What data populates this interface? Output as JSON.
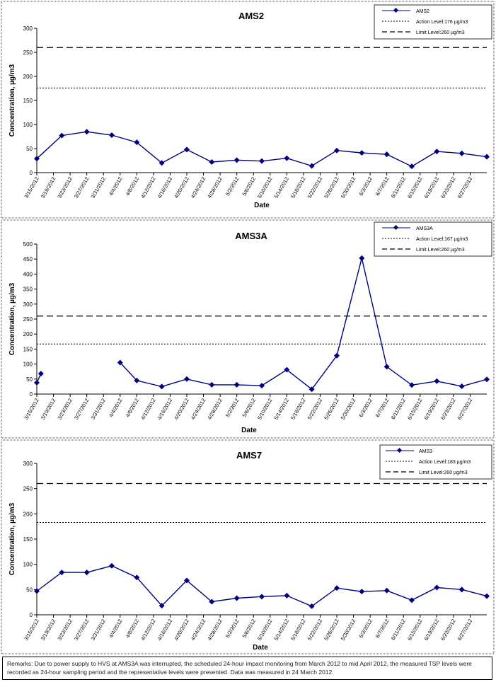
{
  "chart_data": [
    {
      "type": "line",
      "title": "AMS2",
      "xlabel": "Date",
      "ylabel": "Concentration, µg/m3",
      "ylim": [
        0,
        300
      ],
      "yticks": [
        0,
        50,
        100,
        150,
        200,
        250,
        300
      ],
      "x": [
        "3/15/2012",
        "3/19/2012",
        "3/23/2012",
        "3/27/2012",
        "3/31/2012",
        "4/4/2012",
        "4/8/2012",
        "4/12/2012",
        "4/16/2012",
        "4/20/2012",
        "4/24/2012",
        "4/28/2012",
        "5/2/2012",
        "5/6/2012",
        "5/10/2012",
        "5/14/2012",
        "5/18/2012",
        "5/22/2012",
        "5/26/2012",
        "5/30/2012",
        "6/3/2012",
        "6/7/2012",
        "6/11/2012",
        "6/15/2012",
        "6/19/2012",
        "6/23/2012",
        "6/27/2012"
      ],
      "series": [
        {
          "name": "AMS2",
          "points": [
            [
              "3/15/2012",
              29
            ],
            [
              "3/21/2012",
              77
            ],
            [
              "3/27/2012",
              85
            ],
            [
              "4/2/2012",
              78
            ],
            [
              "4/8/2012",
              63
            ],
            [
              "4/14/2012",
              20
            ],
            [
              "4/20/2012",
              48
            ],
            [
              "4/26/2012",
              22
            ],
            [
              "5/2/2012",
              26
            ],
            [
              "5/8/2012",
              24
            ],
            [
              "5/14/2012",
              30
            ],
            [
              "5/20/2012",
              14
            ],
            [
              "5/26/2012",
              46
            ],
            [
              "6/1/2012",
              41
            ],
            [
              "6/7/2012",
              38
            ],
            [
              "6/13/2012",
              13
            ],
            [
              "6/19/2012",
              44
            ],
            [
              "6/25/2012",
              40
            ],
            [
              "7/1/2012",
              33
            ]
          ]
        }
      ],
      "ref_lines": [
        {
          "name": "Action Level:176 µg/m3",
          "value": 176,
          "style": "dotted"
        },
        {
          "name": "Limit Level:260 µg/m3",
          "value": 260,
          "style": "dashed"
        }
      ],
      "legend_position": "top-right"
    },
    {
      "type": "line",
      "title": "AMS3A",
      "xlabel": "Date",
      "ylabel": "Concentration, µg/m3",
      "ylim": [
        0,
        500
      ],
      "yticks": [
        0,
        50,
        100,
        150,
        200,
        250,
        300,
        350,
        400,
        450,
        500
      ],
      "x": [
        "3/15/2012",
        "3/19/2012",
        "3/23/2012",
        "3/27/2012",
        "3/31/2012",
        "4/4/2012",
        "4/8/2012",
        "4/12/2012",
        "4/16/2012",
        "4/20/2012",
        "4/24/2012",
        "4/28/2012",
        "5/2/2012",
        "5/6/2012",
        "5/10/2012",
        "5/14/2012",
        "5/18/2012",
        "5/22/2012",
        "5/26/2012",
        "5/30/2012",
        "6/3/2012",
        "6/7/2012",
        "6/11/2012",
        "6/15/2012",
        "6/19/2012",
        "6/23/2012",
        "6/27/2012"
      ],
      "series": [
        {
          "name": "AMS3A",
          "segments": [
            [
              [
                "3/15/2012",
                38
              ],
              [
                "3/16/2012",
                68
              ]
            ],
            [
              [
                "4/4/2012",
                105
              ],
              [
                "4/8/2012",
                45
              ],
              [
                "4/14/2012",
                25
              ],
              [
                "4/20/2012",
                50
              ],
              [
                "4/26/2012",
                31
              ],
              [
                "5/2/2012",
                31
              ],
              [
                "5/8/2012",
                28
              ],
              [
                "5/14/2012",
                81
              ],
              [
                "5/20/2012",
                16
              ],
              [
                "5/26/2012",
                128
              ],
              [
                "6/1/2012",
                453
              ],
              [
                "6/7/2012",
                91
              ],
              [
                "6/13/2012",
                30
              ],
              [
                "6/19/2012",
                43
              ],
              [
                "6/25/2012",
                26
              ],
              [
                "7/1/2012",
                49
              ]
            ]
          ]
        }
      ],
      "ref_lines": [
        {
          "name": "Action Level:167 µg/m3",
          "value": 167,
          "style": "dotted"
        },
        {
          "name": "Limit Level:260 µg/m3",
          "value": 260,
          "style": "dashed"
        }
      ],
      "legend_position": "top-right"
    },
    {
      "type": "line",
      "title": "AMS7",
      "xlabel": "Date",
      "ylabel": "Concentration, µg/m3",
      "ylim": [
        0,
        300
      ],
      "yticks": [
        0,
        50,
        100,
        150,
        200,
        250,
        300
      ],
      "x": [
        "3/15/2012",
        "3/19/2012",
        "3/23/2012",
        "3/27/2012",
        "3/31/2012",
        "4/4/2012",
        "4/8/2012",
        "4/12/2012",
        "4/16/2012",
        "4/20/2012",
        "4/24/2012",
        "4/28/2012",
        "5/2/2012",
        "5/6/2012",
        "5/10/2012",
        "5/14/2012",
        "5/18/2012",
        "5/22/2012",
        "5/26/2012",
        "5/30/2012",
        "6/3/2012",
        "6/7/2012",
        "6/11/2012",
        "6/15/2012",
        "6/19/2012",
        "6/23/2012",
        "6/27/2012"
      ],
      "series": [
        {
          "name": "AMS3",
          "points": [
            [
              "3/15/2012",
              47
            ],
            [
              "3/21/2012",
              84
            ],
            [
              "3/27/2012",
              84
            ],
            [
              "4/2/2012",
              97
            ],
            [
              "4/8/2012",
              74
            ],
            [
              "4/14/2012",
              18
            ],
            [
              "4/20/2012",
              68
            ],
            [
              "4/26/2012",
              26
            ],
            [
              "5/2/2012",
              33
            ],
            [
              "5/8/2012",
              36
            ],
            [
              "5/14/2012",
              38
            ],
            [
              "5/20/2012",
              17
            ],
            [
              "5/26/2012",
              53
            ],
            [
              "6/1/2012",
              46
            ],
            [
              "6/7/2012",
              48
            ],
            [
              "6/13/2012",
              29
            ],
            [
              "6/19/2012",
              54
            ],
            [
              "6/25/2012",
              50
            ],
            [
              "7/1/2012",
              37
            ]
          ]
        }
      ],
      "ref_lines": [
        {
          "name": "Action Level:183 µg/m3",
          "value": 183,
          "style": "dotted"
        },
        {
          "name": "Limit Level:260 µg/m3",
          "value": 260,
          "style": "dashed"
        }
      ],
      "legend_position": "top-right"
    }
  ],
  "remarks": "Remarks: Due to power supply to HVS at AMS3A was interrupted, the scheduled 24-hour impact monitoring from March 2012 to mid April 2012, the measured TSP levels were recorded as 24-hour sampling period and the representative levels were presented. Data was measured in 24 March 2012.",
  "colors": {
    "series": "#000080",
    "ref": "#000000",
    "frame": "#000000"
  }
}
